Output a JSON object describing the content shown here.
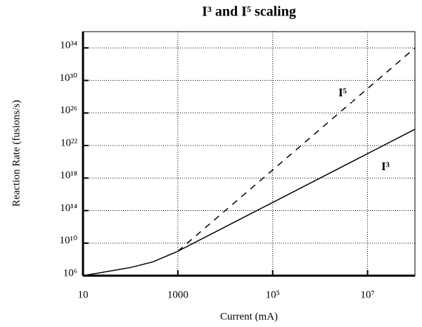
{
  "chart_data": {
    "type": "line",
    "title": "I³ and I⁵ scaling",
    "xlabel": "Current (mA)",
    "ylabel": "Reaction Rate (fusions/s)",
    "log_x": true,
    "log_y": true,
    "grid": true,
    "x": [
      10,
      100,
      300,
      1000,
      10000,
      100000,
      1000000,
      10000000,
      100000000
    ],
    "series": [
      {
        "name": "I³",
        "color": "#000000",
        "style": "solid",
        "values": [
          1000000,
          10000000,
          50000000,
          1000000000,
          1000000000000,
          1000000000000000,
          1e+18,
          1e+21,
          1e+24
        ]
      },
      {
        "name": "I⁵",
        "color": "#000000",
        "style": "dashed",
        "values": [
          null,
          null,
          null,
          1000000000,
          100000000000000.0,
          1e+19,
          1e+24,
          1e+29,
          1e+34
        ]
      }
    ],
    "xlim": [
      10,
      100000000
    ],
    "ylim": [
      1000000,
      1e+36
    ],
    "xticks": [
      10,
      1000,
      {
        "value": 100000,
        "label": "10⁵"
      },
      {
        "value": 10000000,
        "label": "10⁷"
      }
    ],
    "yticks": [
      {
        "value": 1000000,
        "label": "10⁶"
      },
      {
        "value": 10000000000,
        "label": "10¹⁰"
      },
      {
        "value": 100000000000000.0,
        "label": "10¹⁴"
      },
      {
        "value": 1e+18,
        "label": "10¹⁸"
      },
      {
        "value": 1e+22,
        "label": "10²²"
      },
      {
        "value": 1e+26,
        "label": "10²⁶"
      },
      {
        "value": 1e+30,
        "label": "10³⁰"
      },
      {
        "value": 1e+34,
        "label": "10³⁴"
      }
    ]
  }
}
